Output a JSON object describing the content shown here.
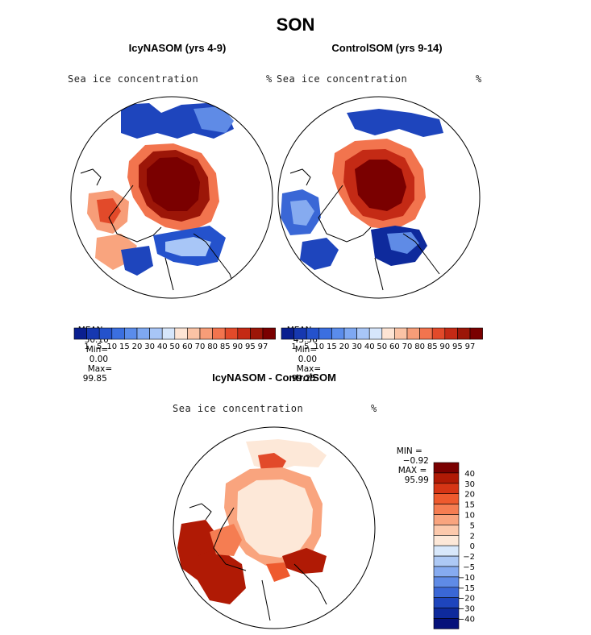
{
  "title": "SON",
  "panels": [
    {
      "id": "left",
      "subtitle": "IcyNASOM (yrs 4-9)",
      "field": "Sea ice concentration",
      "unit": "%",
      "stats": {
        "mean_label": "MEAN=",
        "mean": "50.10",
        "min_label": "Min=",
        "min": "0.00",
        "max_label": "Max=",
        "max": "99.85"
      }
    },
    {
      "id": "right",
      "subtitle": "ControlSOM (yrs 9-14)",
      "field": "Sea ice concentration",
      "unit": "%",
      "stats": {
        "mean_label": "MEAN=",
        "mean": "43.56",
        "min_label": "Min=",
        "min": "0.00",
        "max_label": "Max=",
        "max": "99.25"
      }
    }
  ],
  "diff": {
    "subtitle": "IcyNASOM - ControlSOM",
    "field": "Sea ice concentration",
    "unit": "%",
    "min_label": "MIN =",
    "min": "−0.92",
    "max_label": "MAX =",
    "max": "95.99"
  },
  "chart_data": [
    {
      "type": "heatmap",
      "map": "north-polar-stereographic",
      "title": "IcyNASOM (yrs 4-9)",
      "variable": "Sea ice concentration",
      "unit": "%",
      "stats": {
        "mean": 50.1,
        "min": 0.0,
        "max": 99.85
      },
      "colorbar": {
        "levels": [
          1,
          5,
          10,
          15,
          20,
          30,
          40,
          50,
          60,
          70,
          80,
          85,
          90,
          95,
          97
        ],
        "colors": [
          "#0a1f8f",
          "#1638b0",
          "#2452cc",
          "#3b6fe0",
          "#5a8ceb",
          "#7ea8f2",
          "#a8c6f7",
          "#d6e6fb",
          "#fde4d4",
          "#fbc3a5",
          "#f79d78",
          "#f2744e",
          "#e24a2a",
          "#c42a15",
          "#9c1608",
          "#7a0000"
        ]
      }
    },
    {
      "type": "heatmap",
      "map": "north-polar-stereographic",
      "title": "ControlSOM (yrs 9-14)",
      "variable": "Sea ice concentration",
      "unit": "%",
      "stats": {
        "mean": 43.56,
        "min": 0.0,
        "max": 99.25
      },
      "colorbar": {
        "levels": [
          1,
          5,
          10,
          15,
          20,
          30,
          40,
          50,
          60,
          70,
          80,
          85,
          90,
          95,
          97
        ],
        "colors": [
          "#0a1f8f",
          "#1638b0",
          "#2452cc",
          "#3b6fe0",
          "#5a8ceb",
          "#7ea8f2",
          "#a8c6f7",
          "#d6e6fb",
          "#fde4d4",
          "#fbc3a5",
          "#f79d78",
          "#f2744e",
          "#e24a2a",
          "#c42a15",
          "#9c1608",
          "#7a0000"
        ]
      }
    },
    {
      "type": "heatmap",
      "map": "north-polar-stereographic",
      "title": "IcyNASOM - ControlSOM",
      "variable": "Sea ice concentration",
      "unit": "%",
      "stats": {
        "min": -0.92,
        "max": 95.99
      },
      "colorbar": {
        "levels_top_to_bottom": [
          "40",
          "30",
          "20",
          "15",
          "10",
          "5",
          "2",
          "0",
          "−2",
          "−5",
          "−10",
          "−15",
          "−20",
          "−30",
          "−40"
        ],
        "colors_top_to_bottom": [
          "#7a0000",
          "#b01a05",
          "#d63515",
          "#ee5a2e",
          "#f57d52",
          "#f9a47e",
          "#fcc9ac",
          "#fde8d8",
          "#d8e8fb",
          "#adc9f5",
          "#86abf0",
          "#5f8be6",
          "#3a67d6",
          "#1e45bd",
          "#0e2a9c",
          "#06127a"
        ]
      }
    }
  ]
}
